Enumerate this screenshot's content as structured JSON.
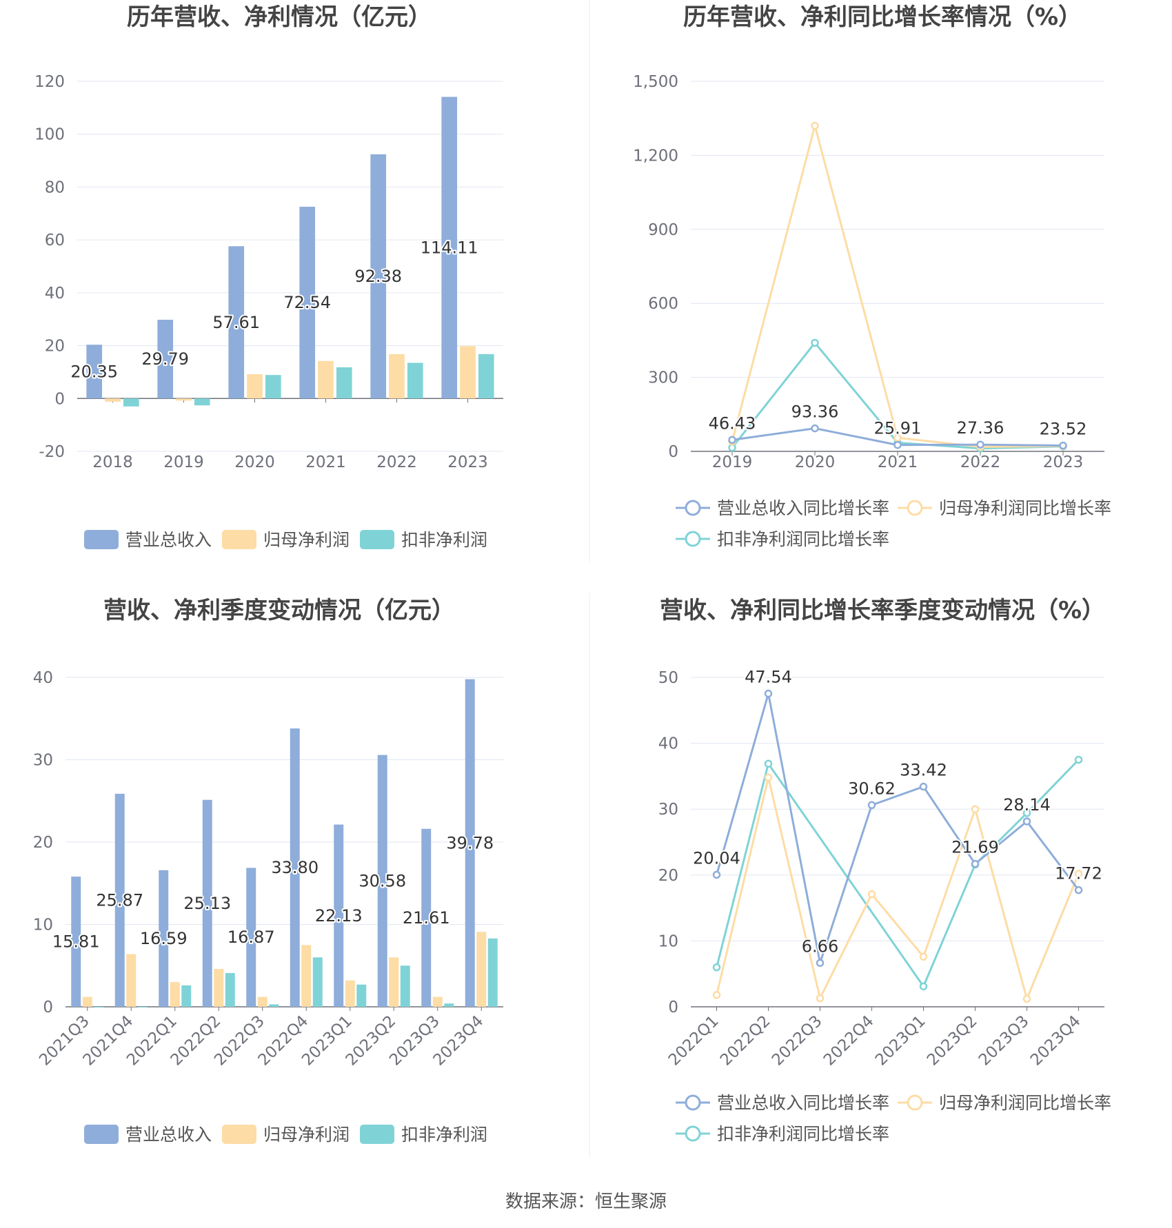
{
  "colors": {
    "revenue": "#8eadda",
    "net_profit": "#fddca5",
    "deducted_profit": "#7fd3d6",
    "grid": "#e0e6f1",
    "axis": "#6e7079"
  },
  "source_text": "数据来源：恒生聚源",
  "chart_data": [
    {
      "id": "annual-bar",
      "type": "bar",
      "title": "历年营收、净利情况（亿元）",
      "categories": [
        "2018",
        "2019",
        "2020",
        "2021",
        "2022",
        "2023"
      ],
      "ylim": [
        -20,
        120
      ],
      "yticks": [
        -20,
        0,
        20,
        40,
        60,
        80,
        100,
        120
      ],
      "series": [
        {
          "name": "营业总收入",
          "color_key": "revenue",
          "values": [
            20.35,
            29.79,
            57.61,
            72.54,
            92.38,
            114.11
          ],
          "labels": [
            "20.35",
            "29.79",
            "57.61",
            "72.54",
            "92.38",
            "114.11"
          ]
        },
        {
          "name": "归母净利润",
          "color_key": "net_profit",
          "values": [
            -1.2,
            -0.8,
            9.2,
            14.2,
            16.8,
            19.8
          ]
        },
        {
          "name": "扣非净利润",
          "color_key": "deducted_profit",
          "values": [
            -3.0,
            -2.6,
            8.9,
            11.8,
            13.5,
            16.8
          ]
        }
      ],
      "grid": true,
      "legend": "bottom"
    },
    {
      "id": "annual-growth",
      "type": "line",
      "title": "历年营收、净利同比增长率情况（%）",
      "categories": [
        "2019",
        "2020",
        "2021",
        "2022",
        "2023"
      ],
      "ylim": [
        0,
        1500
      ],
      "yticks": [
        0,
        300,
        600,
        900,
        1200,
        1500
      ],
      "ytick_labels": [
        "0",
        "300",
        "600",
        "900",
        "1,200",
        "1,500"
      ],
      "series": [
        {
          "name": "营业总收入同比增长率",
          "color_key": "revenue",
          "values": [
            46.43,
            93.36,
            25.91,
            27.36,
            23.52
          ],
          "labels": [
            "46.43",
            "93.36",
            "25.91",
            "27.36",
            "23.52"
          ]
        },
        {
          "name": "归母净利润同比增长率",
          "color_key": "net_profit",
          "values": [
            40,
            1320,
            55,
            18,
            22
          ]
        },
        {
          "name": "扣非净利润同比增长率",
          "color_key": "deducted_profit",
          "values": [
            15,
            440,
            35,
            12,
            20
          ]
        }
      ],
      "grid": true,
      "legend": "bottom"
    },
    {
      "id": "quarterly-bar",
      "type": "bar",
      "title": "营收、净利季度变动情况（亿元）",
      "categories": [
        "2021Q3",
        "2021Q4",
        "2022Q1",
        "2022Q2",
        "2022Q3",
        "2022Q4",
        "2023Q1",
        "2023Q2",
        "2023Q3",
        "2023Q4"
      ],
      "ylim": [
        0,
        40
      ],
      "yticks": [
        0,
        10,
        20,
        30,
        40
      ],
      "series": [
        {
          "name": "营业总收入",
          "color_key": "revenue",
          "values": [
            15.81,
            25.87,
            16.59,
            25.13,
            16.87,
            33.8,
            22.13,
            30.58,
            21.61,
            39.78
          ],
          "labels": [
            "15.81",
            "25.87",
            "16.59",
            "25.13",
            "16.87",
            "33.80",
            "22.13",
            "30.58",
            "21.61",
            "39.78"
          ]
        },
        {
          "name": "归母净利润",
          "color_key": "net_profit",
          "values": [
            1.2,
            6.4,
            3.0,
            4.6,
            1.2,
            7.5,
            3.2,
            6.0,
            1.2,
            9.1
          ]
        },
        {
          "name": "扣非净利润",
          "color_key": "deducted_profit",
          "values": [
            0,
            0,
            2.6,
            4.1,
            0.3,
            6.0,
            2.7,
            5.0,
            0.4,
            8.3
          ]
        }
      ],
      "grid": true,
      "legend": "bottom"
    },
    {
      "id": "quarterly-growth",
      "type": "line",
      "title": "营收、净利同比增长率季度变动情况（%）",
      "categories": [
        "2022Q1",
        "2022Q2",
        "2022Q3",
        "2022Q4",
        "2023Q1",
        "2023Q2",
        "2023Q3",
        "2023Q4"
      ],
      "ylim": [
        0,
        50
      ],
      "yticks": [
        0,
        10,
        20,
        30,
        40,
        50
      ],
      "series": [
        {
          "name": "营业总收入同比增长率",
          "color_key": "revenue",
          "values": [
            20.04,
            47.54,
            6.66,
            30.62,
            33.42,
            21.69,
            28.14,
            17.72
          ],
          "labels": [
            "20.04",
            "47.54",
            "6.66",
            "30.62",
            "33.42",
            "21.69",
            "28.14",
            "17.72"
          ]
        },
        {
          "name": "归母净利润同比增长率",
          "color_key": "net_profit",
          "values": [
            1.8,
            34.8,
            1.3,
            17.1,
            7.6,
            30.0,
            1.2,
            20.2
          ]
        },
        {
          "name": "扣非净利润同比增长率",
          "color_key": "deducted_profit",
          "values": [
            6.0,
            36.9,
            null,
            null,
            3.1,
            21.6,
            29.4,
            37.5
          ]
        }
      ],
      "grid": true,
      "legend": "bottom"
    }
  ]
}
